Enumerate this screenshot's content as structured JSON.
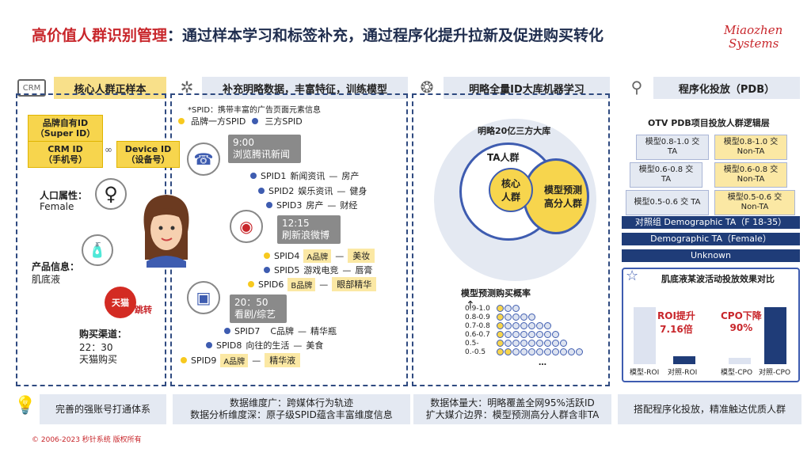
{
  "title": {
    "red": "高价值人群识别管理",
    "rest": "：通过样本学习和标签补充，通过程序化提升拉新及促进购买转化"
  },
  "logo": {
    "line1": "Miaozhen",
    "line2": "Systems"
  },
  "cols": {
    "c1": {
      "icon": "CRM",
      "header": "核心人群正样本",
      "brand_id": "品牌自有ID\n（Super ID）",
      "crm_id": "CRM ID\n（手机号）",
      "device_id": "Device ID\n（设备号）",
      "pop_label": "人口属性：",
      "pop_val": "Female",
      "prod_label": "产品信息：",
      "prod_val": "肌底液",
      "channel_label": "购买渠道：",
      "channel_time": "22：30",
      "channel_val": "天猫购买",
      "tmall": "天猫",
      "jump": "跳转"
    },
    "c2": {
      "header": "补充明略数据，丰富特征，训练模型",
      "note": "*SPID：携带丰富的广告页面元素信息",
      "legend1": "品牌一方SPID",
      "legend2": "三方SPID",
      "b1_time": "9:00",
      "b1_txt": "浏览腾讯新闻",
      "b2_time": "12:15",
      "b2_txt": "刷新浪微博",
      "b3_time": "20：50",
      "b3_txt": "看剧/综艺",
      "s1": [
        "SPID1",
        "新闻资讯",
        "—",
        "房产"
      ],
      "s2": [
        "SPID2",
        "娱乐资讯",
        "—",
        "健身"
      ],
      "s3": [
        "SPID3",
        "房产",
        "—",
        "财经"
      ],
      "s4": [
        "SPID4",
        "A品牌",
        "—",
        "美妆"
      ],
      "s5": [
        "SPID5",
        "游戏电竞",
        "—",
        "唇膏"
      ],
      "s6": [
        "SPID6",
        "B品牌",
        "—",
        "眼部精华"
      ],
      "s7": [
        "SPID7",
        "C品牌",
        "—",
        "精华瓶"
      ],
      "s8": [
        "SPID8",
        "向往的生活",
        "—",
        "美食"
      ],
      "s9": [
        "SPID9",
        "A品牌",
        "—",
        "精华液"
      ]
    },
    "c3": {
      "header": "明略全量ID大库机器学习",
      "db": "明略20亿三方大库",
      "ta": "TA人群",
      "core": "核心\n人群",
      "model": "模型预测\n高分人群",
      "chart_title": "模型预测购买概率",
      "rows": [
        "0.9-1.0",
        "0.8-0.9",
        "0.7-0.8",
        "0.6-0.7",
        "0.5-",
        "0.-0.5"
      ],
      "ell": "…"
    },
    "c4": {
      "header": "程序化投放（PDB）",
      "sub": "OTV PDB项目投放人群逻辑层",
      "r1l": "模型0.8-1.0 交\nTA",
      "r1r": "模型0.8-1.0 交\nNon-TA",
      "r2l": "模型0.6-0.8 交\nTA",
      "r2r": "模型0.6-0.8 交\nNon-TA",
      "r3l": "模型0.5-0.6 交 TA",
      "r3r": "模型0.5-0.6 交\nNon-TA",
      "n1": "对照组 Demographic TA（F 18-35）",
      "n2": "Demographic TA（Female）",
      "n3": "Unknown",
      "effect": "肌底液某波活动投放效果对比",
      "roi": "ROI提升\n7.16倍",
      "cpo": "CPO下降\n90%",
      "x1": "模型-ROI",
      "x2": "对照-ROI",
      "x3": "模型-CPO",
      "x4": "对照-CPO"
    }
  },
  "footer": {
    "f1": "完善的强账号打通体系",
    "f2": "数据维度广：跨媒体行为轨迹\n数据分析维度深：原子级SPID蕴含丰富维度信息",
    "f3": "数据体量大：明略覆盖全网95%活跃ID\n扩大媒介边界：模型预测高分人群含非TA",
    "f4": "搭配程序化投放，精准触达优质人群"
  },
  "copyright": "© 2006-2023 秒针系统 版权所有"
}
